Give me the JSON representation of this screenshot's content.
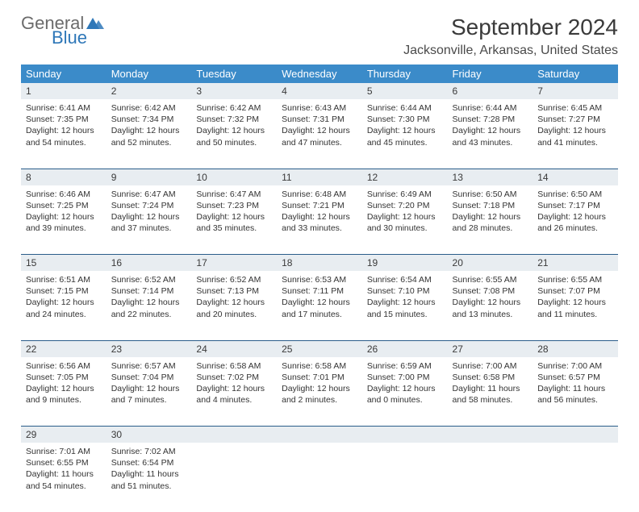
{
  "brand": {
    "general": "General",
    "blue": "Blue"
  },
  "title": "September 2024",
  "location": "Jacksonville, Arkansas, United States",
  "colors": {
    "header_bg": "#3b8bc9",
    "daynum_bg": "#e8edf1",
    "border": "#2a5d8a",
    "text": "#333333",
    "logo_gray": "#6b6b6b",
    "logo_blue": "#2e77b8"
  },
  "typography": {
    "title_fontsize": 28,
    "location_fontsize": 16,
    "dayheader_fontsize": 13,
    "cell_fontsize": 10.5
  },
  "day_headers": [
    "Sunday",
    "Monday",
    "Tuesday",
    "Wednesday",
    "Thursday",
    "Friday",
    "Saturday"
  ],
  "weeks": [
    [
      {
        "n": "1",
        "sr": "Sunrise: 6:41 AM",
        "ss": "Sunset: 7:35 PM",
        "d1": "Daylight: 12 hours",
        "d2": "and 54 minutes."
      },
      {
        "n": "2",
        "sr": "Sunrise: 6:42 AM",
        "ss": "Sunset: 7:34 PM",
        "d1": "Daylight: 12 hours",
        "d2": "and 52 minutes."
      },
      {
        "n": "3",
        "sr": "Sunrise: 6:42 AM",
        "ss": "Sunset: 7:32 PM",
        "d1": "Daylight: 12 hours",
        "d2": "and 50 minutes."
      },
      {
        "n": "4",
        "sr": "Sunrise: 6:43 AM",
        "ss": "Sunset: 7:31 PM",
        "d1": "Daylight: 12 hours",
        "d2": "and 47 minutes."
      },
      {
        "n": "5",
        "sr": "Sunrise: 6:44 AM",
        "ss": "Sunset: 7:30 PM",
        "d1": "Daylight: 12 hours",
        "d2": "and 45 minutes."
      },
      {
        "n": "6",
        "sr": "Sunrise: 6:44 AM",
        "ss": "Sunset: 7:28 PM",
        "d1": "Daylight: 12 hours",
        "d2": "and 43 minutes."
      },
      {
        "n": "7",
        "sr": "Sunrise: 6:45 AM",
        "ss": "Sunset: 7:27 PM",
        "d1": "Daylight: 12 hours",
        "d2": "and 41 minutes."
      }
    ],
    [
      {
        "n": "8",
        "sr": "Sunrise: 6:46 AM",
        "ss": "Sunset: 7:25 PM",
        "d1": "Daylight: 12 hours",
        "d2": "and 39 minutes."
      },
      {
        "n": "9",
        "sr": "Sunrise: 6:47 AM",
        "ss": "Sunset: 7:24 PM",
        "d1": "Daylight: 12 hours",
        "d2": "and 37 minutes."
      },
      {
        "n": "10",
        "sr": "Sunrise: 6:47 AM",
        "ss": "Sunset: 7:23 PM",
        "d1": "Daylight: 12 hours",
        "d2": "and 35 minutes."
      },
      {
        "n": "11",
        "sr": "Sunrise: 6:48 AM",
        "ss": "Sunset: 7:21 PM",
        "d1": "Daylight: 12 hours",
        "d2": "and 33 minutes."
      },
      {
        "n": "12",
        "sr": "Sunrise: 6:49 AM",
        "ss": "Sunset: 7:20 PM",
        "d1": "Daylight: 12 hours",
        "d2": "and 30 minutes."
      },
      {
        "n": "13",
        "sr": "Sunrise: 6:50 AM",
        "ss": "Sunset: 7:18 PM",
        "d1": "Daylight: 12 hours",
        "d2": "and 28 minutes."
      },
      {
        "n": "14",
        "sr": "Sunrise: 6:50 AM",
        "ss": "Sunset: 7:17 PM",
        "d1": "Daylight: 12 hours",
        "d2": "and 26 minutes."
      }
    ],
    [
      {
        "n": "15",
        "sr": "Sunrise: 6:51 AM",
        "ss": "Sunset: 7:15 PM",
        "d1": "Daylight: 12 hours",
        "d2": "and 24 minutes."
      },
      {
        "n": "16",
        "sr": "Sunrise: 6:52 AM",
        "ss": "Sunset: 7:14 PM",
        "d1": "Daylight: 12 hours",
        "d2": "and 22 minutes."
      },
      {
        "n": "17",
        "sr": "Sunrise: 6:52 AM",
        "ss": "Sunset: 7:13 PM",
        "d1": "Daylight: 12 hours",
        "d2": "and 20 minutes."
      },
      {
        "n": "18",
        "sr": "Sunrise: 6:53 AM",
        "ss": "Sunset: 7:11 PM",
        "d1": "Daylight: 12 hours",
        "d2": "and 17 minutes."
      },
      {
        "n": "19",
        "sr": "Sunrise: 6:54 AM",
        "ss": "Sunset: 7:10 PM",
        "d1": "Daylight: 12 hours",
        "d2": "and 15 minutes."
      },
      {
        "n": "20",
        "sr": "Sunrise: 6:55 AM",
        "ss": "Sunset: 7:08 PM",
        "d1": "Daylight: 12 hours",
        "d2": "and 13 minutes."
      },
      {
        "n": "21",
        "sr": "Sunrise: 6:55 AM",
        "ss": "Sunset: 7:07 PM",
        "d1": "Daylight: 12 hours",
        "d2": "and 11 minutes."
      }
    ],
    [
      {
        "n": "22",
        "sr": "Sunrise: 6:56 AM",
        "ss": "Sunset: 7:05 PM",
        "d1": "Daylight: 12 hours",
        "d2": "and 9 minutes."
      },
      {
        "n": "23",
        "sr": "Sunrise: 6:57 AM",
        "ss": "Sunset: 7:04 PM",
        "d1": "Daylight: 12 hours",
        "d2": "and 7 minutes."
      },
      {
        "n": "24",
        "sr": "Sunrise: 6:58 AM",
        "ss": "Sunset: 7:02 PM",
        "d1": "Daylight: 12 hours",
        "d2": "and 4 minutes."
      },
      {
        "n": "25",
        "sr": "Sunrise: 6:58 AM",
        "ss": "Sunset: 7:01 PM",
        "d1": "Daylight: 12 hours",
        "d2": "and 2 minutes."
      },
      {
        "n": "26",
        "sr": "Sunrise: 6:59 AM",
        "ss": "Sunset: 7:00 PM",
        "d1": "Daylight: 12 hours",
        "d2": "and 0 minutes."
      },
      {
        "n": "27",
        "sr": "Sunrise: 7:00 AM",
        "ss": "Sunset: 6:58 PM",
        "d1": "Daylight: 11 hours",
        "d2": "and 58 minutes."
      },
      {
        "n": "28",
        "sr": "Sunrise: 7:00 AM",
        "ss": "Sunset: 6:57 PM",
        "d1": "Daylight: 11 hours",
        "d2": "and 56 minutes."
      }
    ],
    [
      {
        "n": "29",
        "sr": "Sunrise: 7:01 AM",
        "ss": "Sunset: 6:55 PM",
        "d1": "Daylight: 11 hours",
        "d2": "and 54 minutes."
      },
      {
        "n": "30",
        "sr": "Sunrise: 7:02 AM",
        "ss": "Sunset: 6:54 PM",
        "d1": "Daylight: 11 hours",
        "d2": "and 51 minutes."
      },
      null,
      null,
      null,
      null,
      null
    ]
  ]
}
